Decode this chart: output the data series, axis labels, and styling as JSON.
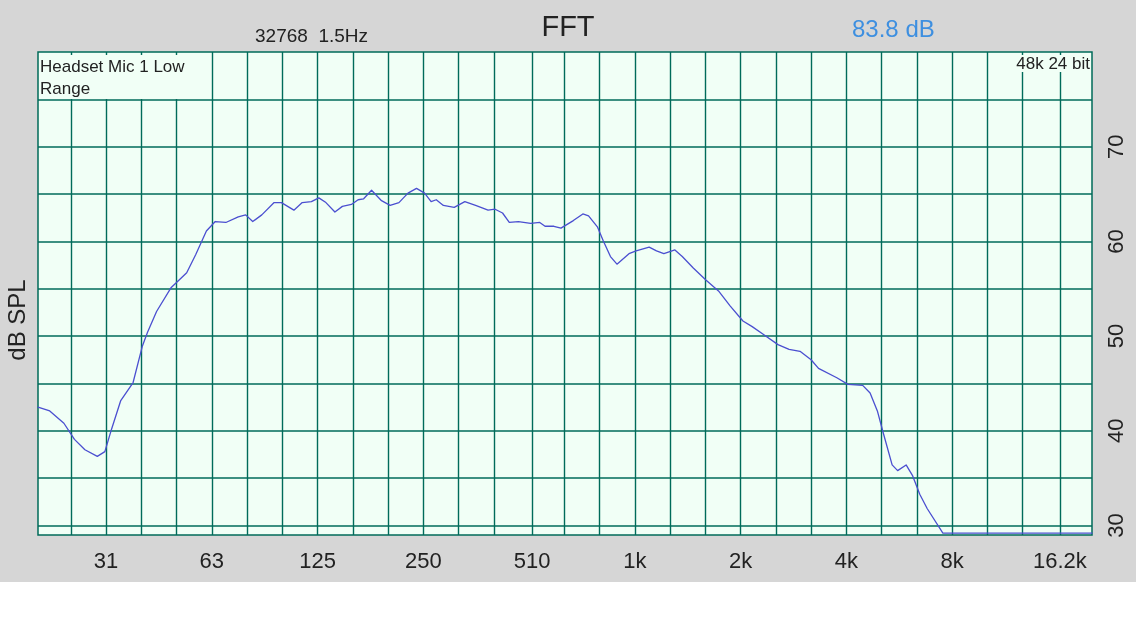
{
  "chart_data": {
    "type": "line",
    "title": "FFT",
    "ylabel": "dB SPL",
    "annotations": [
      "32768  1.5Hz",
      "83.8 dB",
      "Headset Mic 1 Low Range",
      "48k 24 bit"
    ],
    "log": "x",
    "grid": true,
    "marker": "none",
    "line_style": "solid",
    "xlim": [
      20,
      20000
    ],
    "ylim": [
      29,
      80
    ],
    "xticks": [
      {
        "value": 24.8,
        "label": null
      },
      {
        "value": 31.25,
        "label": "31"
      },
      {
        "value": 39.4,
        "label": null
      },
      {
        "value": 49.6,
        "label": null
      },
      {
        "value": 62.5,
        "label": "63"
      },
      {
        "value": 78.7,
        "label": null
      },
      {
        "value": 99.2,
        "label": null
      },
      {
        "value": 125,
        "label": "125"
      },
      {
        "value": 157.5,
        "label": null
      },
      {
        "value": 198.4,
        "label": null
      },
      {
        "value": 250,
        "label": "250"
      },
      {
        "value": 315,
        "label": null
      },
      {
        "value": 396.9,
        "label": null
      },
      {
        "value": 510,
        "label": "510"
      },
      {
        "value": 630,
        "label": null
      },
      {
        "value": 793.7,
        "label": null
      },
      {
        "value": 1000,
        "label": "1k"
      },
      {
        "value": 1260,
        "label": null
      },
      {
        "value": 1587,
        "label": null
      },
      {
        "value": 2000,
        "label": "2k"
      },
      {
        "value": 2520,
        "label": null
      },
      {
        "value": 3175,
        "label": null
      },
      {
        "value": 4000,
        "label": "4k"
      },
      {
        "value": 5040,
        "label": null
      },
      {
        "value": 6350,
        "label": null
      },
      {
        "value": 8000,
        "label": "8k"
      },
      {
        "value": 10080,
        "label": null
      },
      {
        "value": 12700,
        "label": null
      },
      {
        "value": 16200,
        "label": "16.2k"
      }
    ],
    "yticks": [
      30,
      {
        "value": 35,
        "label": null
      },
      40,
      {
        "value": 45,
        "label": null
      },
      50,
      {
        "value": 55,
        "label": null
      },
      60,
      {
        "value": 65,
        "label": null
      },
      70,
      {
        "value": 75,
        "label": null
      }
    ],
    "series": [
      {
        "color": "#4b4fd0",
        "x": [
          20,
          21.6,
          23.7,
          25.4,
          27.2,
          29.5,
          31.0,
          32.4,
          34.4,
          37.3,
          39.6,
          41.0,
          43.5,
          47.8,
          50.0,
          53.0,
          56.2,
          60.3,
          63.9,
          68.5,
          74.3,
          78.0,
          81.7,
          86.7,
          94.0,
          98.6,
          107,
          113,
          120,
          126,
          132,
          140,
          147,
          156,
          163,
          169,
          178,
          190,
          201,
          213,
          226,
          239,
          252,
          263,
          272,
          285,
          306,
          328,
          352,
          382,
          400,
          420,
          439,
          466,
          505,
          536,
          555,
          588,
          616,
          668,
          711,
          738,
          783,
          812,
          852,
          889,
          962,
          1008,
          1098,
          1152,
          1209,
          1300,
          1364,
          1466,
          1595,
          1736,
          1866,
          2030,
          2157,
          2318,
          2554,
          2747,
          2951,
          3173,
          3331,
          3756,
          4039,
          4450,
          4671,
          4899,
          5081,
          5397,
          5595,
          5915,
          6164,
          6468,
          6789,
          7527,
          20000
        ],
        "values": [
          42.5,
          42.1,
          40.8,
          39.1,
          38.0,
          37.3,
          37.8,
          40.2,
          43.2,
          45.1,
          48.9,
          50.4,
          52.6,
          55.1,
          55.8,
          56.7,
          58.6,
          61.1,
          62.1,
          62.0,
          62.6,
          62.8,
          62.1,
          62.8,
          64.1,
          64.1,
          63.3,
          64.1,
          64.2,
          64.6,
          64.1,
          63.1,
          63.7,
          63.9,
          64.4,
          64.5,
          65.4,
          64.3,
          63.8,
          64.1,
          65.1,
          65.6,
          65.1,
          64.2,
          64.4,
          63.8,
          63.6,
          64.2,
          63.8,
          63.3,
          63.4,
          63.0,
          62.0,
          62.1,
          61.9,
          62.0,
          61.6,
          61.6,
          61.4,
          62.2,
          62.9,
          62.7,
          61.5,
          60.1,
          58.4,
          57.6,
          58.7,
          59.0,
          59.4,
          59.0,
          58.7,
          59.1,
          58.4,
          57.2,
          55.9,
          54.7,
          53.2,
          51.6,
          51.0,
          50.2,
          49.1,
          48.6,
          48.4,
          47.5,
          46.6,
          45.6,
          44.9,
          44.8,
          44.0,
          42.1,
          39.9,
          36.4,
          35.8,
          36.4,
          35.3,
          33.3,
          31.8,
          29.2,
          29.2
        ]
      }
    ]
  }
}
